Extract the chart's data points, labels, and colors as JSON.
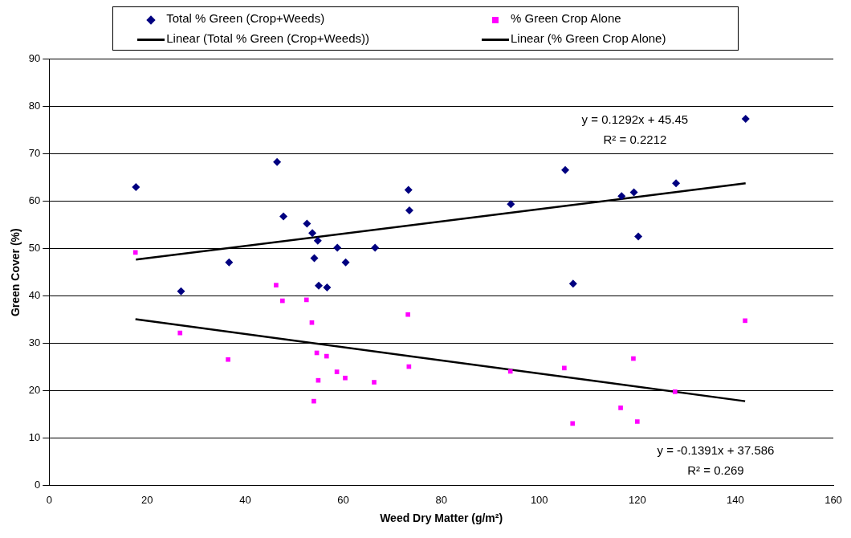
{
  "chart_data": {
    "type": "scatter",
    "xlabel": "Weed Dry Matter (g/m²)",
    "ylabel": "Green Cover (%)",
    "xlim": [
      0,
      160
    ],
    "xticks": [
      0,
      20,
      40,
      60,
      80,
      100,
      120,
      140,
      160
    ],
    "ylim": [
      0,
      90
    ],
    "yticks": [
      0,
      10,
      20,
      30,
      40,
      50,
      60,
      70,
      80,
      90
    ],
    "grid": "y",
    "legend": "top",
    "series": [
      {
        "name": "Total % Green (Crop+Weeds)",
        "marker": "diamond",
        "color": "#000080",
        "x": [
          17.7,
          26.9,
          36.7,
          46.5,
          47.8,
          52.6,
          53.7,
          54.1,
          54.8,
          55.0,
          56.7,
          58.8,
          60.5,
          66.5,
          73.3,
          73.5,
          94.2,
          105.3,
          106.9,
          116.8,
          119.3,
          120.2,
          127.9,
          142.1
        ],
        "values": [
          63.0,
          41.0,
          47.1,
          68.3,
          56.8,
          55.3,
          53.3,
          48.0,
          51.7,
          42.2,
          41.8,
          50.2,
          47.1,
          50.2,
          62.4,
          58.1,
          59.4,
          66.6,
          42.6,
          61.1,
          61.9,
          52.6,
          63.8,
          77.4
        ]
      },
      {
        "name": "% Green Crop Alone",
        "marker": "square",
        "color": "#ff00ff",
        "x": [
          17.6,
          26.7,
          36.5,
          46.3,
          47.6,
          52.5,
          53.6,
          54.0,
          54.6,
          54.9,
          56.6,
          58.7,
          60.4,
          66.3,
          73.2,
          73.4,
          94.1,
          105.1,
          106.8,
          116.6,
          119.2,
          120.0,
          127.7,
          142.0
        ],
        "values": [
          49.2,
          32.2,
          26.6,
          42.3,
          39.0,
          39.2,
          34.4,
          17.8,
          28.0,
          22.2,
          27.3,
          24.0,
          22.7,
          21.8,
          36.1,
          25.1,
          24.1,
          24.8,
          13.1,
          16.4,
          26.8,
          13.5,
          19.8,
          34.8
        ]
      },
      {
        "name": "Linear (Total % Green (Crop+Weeds))",
        "type": "line",
        "marker": "none",
        "line_style": "solid",
        "color": "#000000",
        "x": [
          17.7,
          142.1
        ],
        "values": [
          47.7,
          63.8
        ]
      },
      {
        "name": "Linear (% Green Crop Alone)",
        "type": "line",
        "marker": "none",
        "line_style": "solid",
        "color": "#000000",
        "x": [
          17.6,
          142.0
        ],
        "values": [
          35.1,
          17.8
        ]
      }
    ],
    "annotations": [
      "y = 0.1292x + 45.45",
      "R² = 0.2212",
      "y = -0.1391x + 37.586",
      "R² = 0.269"
    ]
  }
}
